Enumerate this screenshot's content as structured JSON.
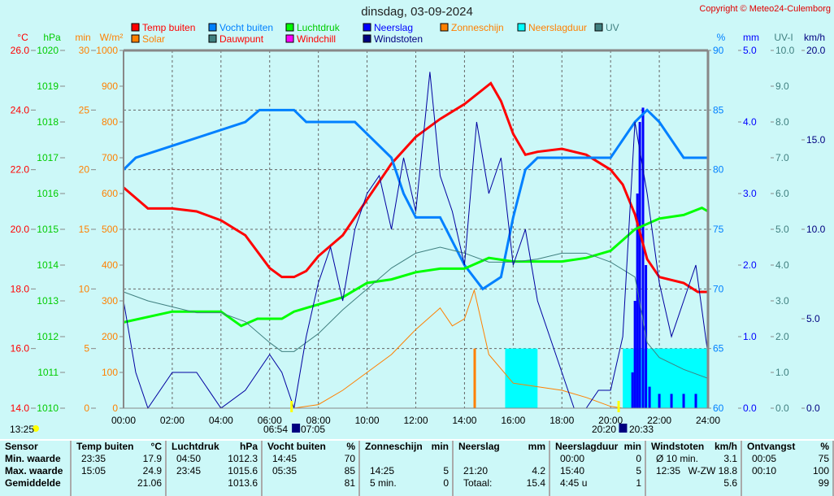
{
  "chart_data": {
    "type": "line",
    "title": "dinsdag, 03-09-2024",
    "copyright": "Copyright © Meteo24-Culemborg",
    "x_ticks": [
      "00:00",
      "02:00",
      "04:00",
      "06:00",
      "08:00",
      "10:00",
      "12:00",
      "14:00",
      "16:00",
      "18:00",
      "20:00",
      "22:00",
      "24:00"
    ],
    "xlim": [
      0,
      24
    ],
    "axes": {
      "temp": {
        "unit": "°C",
        "range": [
          14,
          26
        ],
        "ticks": [
          "14.0",
          "16.0",
          "18.0",
          "20.0",
          "22.0",
          "24.0",
          "26.0"
        ],
        "color": "#ff0000"
      },
      "pressure": {
        "unit": "hPa",
        "range": [
          1010,
          1020
        ],
        "ticks": [
          "1010",
          "1011",
          "1012",
          "1013",
          "1014",
          "1015",
          "1016",
          "1017",
          "1018",
          "1019",
          "1020"
        ],
        "color": "#00cc00"
      },
      "minutes": {
        "unit": "min",
        "range": [
          0,
          30
        ],
        "ticks": [
          "0",
          "5",
          "10",
          "15",
          "20",
          "25",
          "30"
        ],
        "color": "#ff8000"
      },
      "solar": {
        "unit": "W/m²",
        "range": [
          0,
          1000
        ],
        "ticks": [
          "0",
          "100",
          "200",
          "300",
          "400",
          "500",
          "600",
          "700",
          "800",
          "900",
          "1000"
        ],
        "color": "#ff8000"
      },
      "humidity": {
        "unit": "%",
        "range": [
          60,
          90
        ],
        "ticks": [
          "60",
          "65",
          "70",
          "75",
          "80",
          "85",
          "90"
        ],
        "color": "#0080ff"
      },
      "rain": {
        "unit": "mm",
        "range": [
          0,
          5
        ],
        "ticks": [
          "0.0",
          "1.0",
          "2.0",
          "3.0",
          "4.0",
          "5.0"
        ],
        "color": "#0000ff"
      },
      "uv": {
        "unit": "UV-I",
        "range": [
          0,
          10
        ],
        "ticks": [
          "0.0",
          "1.0",
          "2.0",
          "3.0",
          "4.0",
          "5.0",
          "6.0",
          "7.0",
          "8.0",
          "9.0",
          "10.0"
        ],
        "color": "#408080"
      },
      "wind": {
        "unit": "km/h",
        "range": [
          0,
          20
        ],
        "ticks": [
          "0.0",
          "5.0",
          "10.0",
          "15.0",
          "20.0"
        ],
        "color": "#000080"
      }
    },
    "legend": [
      {
        "name": "Temp buiten",
        "color": "#ff0000",
        "text": "#ff0000"
      },
      {
        "name": "Vocht buiten",
        "color": "#0080ff",
        "text": "#0080ff"
      },
      {
        "name": "Luchtdruk",
        "color": "#00ff00",
        "text": "#00cc00"
      },
      {
        "name": "Neerslag",
        "color": "#0000ff",
        "text": "#0000ff"
      },
      {
        "name": "Zonneschijn",
        "color": "#ff8000",
        "text": "#ff8000"
      },
      {
        "name": "Neerslagduur",
        "color": "#00ffff",
        "text": "#ff8000"
      },
      {
        "name": "UV",
        "color": "#408080",
        "text": "#408080"
      },
      {
        "name": "Solar",
        "color": "#ff8000",
        "text": "#ff8000"
      },
      {
        "name": "Dauwpunt",
        "color": "#408080",
        "text": "#ff0000"
      },
      {
        "name": "Windchill",
        "color": "#ff00ff",
        "text": "#ff0000"
      },
      {
        "name": "Windstoten",
        "color": "#000080",
        "text": "#000080"
      }
    ],
    "series": [
      {
        "name": "Temp buiten",
        "axis": "temp",
        "color": "#ff0000",
        "width": 3,
        "points": [
          [
            0,
            21.4
          ],
          [
            1,
            20.7
          ],
          [
            2,
            20.7
          ],
          [
            3,
            20.6
          ],
          [
            4,
            20.3
          ],
          [
            5,
            19.8
          ],
          [
            6,
            18.7
          ],
          [
            6.5,
            18.4
          ],
          [
            7,
            18.4
          ],
          [
            7.5,
            18.6
          ],
          [
            8,
            19.1
          ],
          [
            9,
            19.8
          ],
          [
            10,
            21.0
          ],
          [
            11,
            22.2
          ],
          [
            12,
            23.1
          ],
          [
            13,
            23.7
          ],
          [
            14,
            24.2
          ],
          [
            15.08,
            24.9
          ],
          [
            15.5,
            24.3
          ],
          [
            16,
            23.2
          ],
          [
            16.5,
            22.5
          ],
          [
            17,
            22.6
          ],
          [
            18,
            22.7
          ],
          [
            19,
            22.5
          ],
          [
            20,
            22.0
          ],
          [
            20.5,
            21.5
          ],
          [
            21,
            20.5
          ],
          [
            21.5,
            19.0
          ],
          [
            22,
            18.4
          ],
          [
            23,
            18.2
          ],
          [
            23.58,
            17.9
          ],
          [
            24,
            17.9
          ]
        ]
      },
      {
        "name": "Vocht buiten",
        "axis": "humidity",
        "color": "#0080ff",
        "width": 3,
        "points": [
          [
            0,
            80
          ],
          [
            0.5,
            81
          ],
          [
            2,
            82
          ],
          [
            3.5,
            83
          ],
          [
            5,
            84
          ],
          [
            5.58,
            85
          ],
          [
            7,
            85
          ],
          [
            7.5,
            84
          ],
          [
            9.5,
            84
          ],
          [
            10,
            83
          ],
          [
            11,
            81
          ],
          [
            11.5,
            78
          ],
          [
            12,
            76
          ],
          [
            13,
            76
          ],
          [
            13.5,
            74
          ],
          [
            14,
            72
          ],
          [
            14.75,
            70
          ],
          [
            15.5,
            71
          ],
          [
            16,
            76
          ],
          [
            16.5,
            80
          ],
          [
            17,
            81
          ],
          [
            18,
            81
          ],
          [
            20,
            81
          ],
          [
            20.5,
            82.5
          ],
          [
            21,
            84
          ],
          [
            21.5,
            85
          ],
          [
            22,
            84
          ],
          [
            23,
            81
          ],
          [
            24,
            81
          ]
        ]
      },
      {
        "name": "Luchtdruk",
        "axis": "pressure",
        "color": "#00ff00",
        "width": 3,
        "points": [
          [
            0,
            1012.4
          ],
          [
            2,
            1012.7
          ],
          [
            4,
            1012.7
          ],
          [
            4.83,
            1012.3
          ],
          [
            5.5,
            1012.5
          ],
          [
            6.5,
            1012.5
          ],
          [
            7,
            1012.7
          ],
          [
            8,
            1012.9
          ],
          [
            9,
            1013.1
          ],
          [
            10,
            1013.5
          ],
          [
            11,
            1013.6
          ],
          [
            12,
            1013.8
          ],
          [
            13,
            1013.9
          ],
          [
            14,
            1013.9
          ],
          [
            15,
            1014.2
          ],
          [
            16,
            1014.1
          ],
          [
            18,
            1014.1
          ],
          [
            19,
            1014.2
          ],
          [
            20,
            1014.4
          ],
          [
            20.5,
            1014.7
          ],
          [
            21,
            1015.0
          ],
          [
            22,
            1015.3
          ],
          [
            23,
            1015.4
          ],
          [
            23.75,
            1015.6
          ],
          [
            24,
            1015.5
          ]
        ]
      },
      {
        "name": "Dauwpunt",
        "axis": "temp",
        "color": "#408080",
        "width": 1,
        "points": [
          [
            0,
            17.9
          ],
          [
            1,
            17.6
          ],
          [
            2,
            17.4
          ],
          [
            3,
            17.2
          ],
          [
            4,
            17.2
          ],
          [
            5,
            16.9
          ],
          [
            6,
            16.2
          ],
          [
            6.5,
            15.9
          ],
          [
            7,
            15.9
          ],
          [
            8,
            16.5
          ],
          [
            9,
            17.3
          ],
          [
            10,
            18.0
          ],
          [
            11,
            18.7
          ],
          [
            12,
            19.2
          ],
          [
            13,
            19.4
          ],
          [
            14,
            19.2
          ],
          [
            15,
            18.9
          ],
          [
            16,
            18.9
          ],
          [
            17,
            19.0
          ],
          [
            18,
            19.2
          ],
          [
            19,
            19.2
          ],
          [
            20,
            18.9
          ],
          [
            21,
            18.4
          ],
          [
            21.5,
            16.2
          ],
          [
            22,
            15.7
          ],
          [
            23,
            15.3
          ],
          [
            24,
            15.0
          ]
        ]
      },
      {
        "name": "Solar",
        "axis": "solar",
        "color": "#ff8000",
        "width": 1,
        "points": [
          [
            0,
            0
          ],
          [
            7,
            0
          ],
          [
            7.5,
            5
          ],
          [
            8,
            10
          ],
          [
            9,
            50
          ],
          [
            10,
            100
          ],
          [
            11,
            150
          ],
          [
            12,
            220
          ],
          [
            13,
            280
          ],
          [
            13.5,
            230
          ],
          [
            14,
            250
          ],
          [
            14.4,
            330
          ],
          [
            15,
            150
          ],
          [
            16,
            70
          ],
          [
            17,
            60
          ],
          [
            18,
            50
          ],
          [
            19,
            30
          ],
          [
            20,
            5
          ],
          [
            20.5,
            0
          ],
          [
            24,
            0
          ]
        ]
      },
      {
        "name": "UV",
        "axis": "uv",
        "color": "#408080",
        "width": 1,
        "points": [
          [
            0,
            0
          ],
          [
            24,
            0
          ]
        ]
      },
      {
        "name": "Windstoten",
        "axis": "wind",
        "color": "#0000a0",
        "width": 1,
        "points": [
          [
            0,
            6
          ],
          [
            0.5,
            2
          ],
          [
            1,
            0
          ],
          [
            2,
            2
          ],
          [
            3,
            2
          ],
          [
            4,
            0
          ],
          [
            5,
            1
          ],
          [
            6,
            3
          ],
          [
            6.5,
            2
          ],
          [
            7,
            0
          ],
          [
            7.5,
            4
          ],
          [
            8,
            7
          ],
          [
            8.5,
            9
          ],
          [
            9,
            6
          ],
          [
            9.5,
            10
          ],
          [
            10,
            12
          ],
          [
            10.5,
            13
          ],
          [
            11,
            10
          ],
          [
            11.5,
            14
          ],
          [
            12,
            11
          ],
          [
            12.58,
            18.8
          ],
          [
            13,
            13
          ],
          [
            13.5,
            11
          ],
          [
            14,
            8
          ],
          [
            14.5,
            16
          ],
          [
            15,
            12
          ],
          [
            15.5,
            14
          ],
          [
            16,
            8
          ],
          [
            16.5,
            10
          ],
          [
            17,
            6
          ],
          [
            17.5,
            4
          ],
          [
            18,
            2
          ],
          [
            18.5,
            0
          ],
          [
            19,
            0
          ],
          [
            19.5,
            1
          ],
          [
            20,
            1
          ],
          [
            20.5,
            4
          ],
          [
            21,
            16
          ],
          [
            21.5,
            12
          ],
          [
            22,
            7
          ],
          [
            22.5,
            4
          ],
          [
            23,
            6
          ],
          [
            23.5,
            8
          ],
          [
            24,
            3
          ]
        ]
      }
    ],
    "bars": [
      {
        "name": "Zonneschijn",
        "axis": "minutes",
        "color": "#ff8000",
        "points": [
          [
            14.42,
            5
          ]
        ]
      },
      {
        "name": "Neerslagduur",
        "axis": "minutes",
        "color": "#00ffff",
        "spans": [
          [
            15.67,
            17.0,
            5
          ],
          [
            20.5,
            24,
            5
          ]
        ]
      },
      {
        "name": "Neerslag",
        "axis": "rain",
        "color": "#0000ff",
        "points": [
          [
            20.9,
            0.5
          ],
          [
            21.0,
            1.5
          ],
          [
            21.1,
            3.0
          ],
          [
            21.2,
            4.0
          ],
          [
            21.33,
            4.2
          ],
          [
            21.45,
            2.0
          ],
          [
            21.6,
            0.3
          ],
          [
            22,
            0.2
          ],
          [
            22.5,
            0.2
          ],
          [
            23,
            0.2
          ],
          [
            23.5,
            0.2
          ]
        ]
      }
    ],
    "sun": {
      "daylength": "13:25",
      "sunrise": "06:54",
      "sunrise_civil": "07:05",
      "sunset": "20:20",
      "sunset_civil": "20:33"
    }
  },
  "table": {
    "columns": [
      {
        "head": [
          "Sensor",
          ""
        ],
        "rows": [
          [
            "Min. waarde",
            ""
          ],
          [
            "Max. waarde",
            ""
          ],
          [
            "Gemiddelde",
            ""
          ]
        ]
      },
      {
        "head": [
          "Temp buiten",
          "°C"
        ],
        "rows": [
          [
            "23:35",
            "17.9"
          ],
          [
            "15:05",
            "24.9"
          ],
          [
            "",
            "21.06"
          ]
        ]
      },
      {
        "head": [
          "Luchtdruk",
          "hPa"
        ],
        "rows": [
          [
            "04:50",
            "1012.3"
          ],
          [
            "23:45",
            "1015.6"
          ],
          [
            "",
            "1013.6"
          ]
        ]
      },
      {
        "head": [
          "Vocht buiten",
          "%"
        ],
        "rows": [
          [
            "14:45",
            "70"
          ],
          [
            "05:35",
            "85"
          ],
          [
            "",
            "81"
          ]
        ]
      },
      {
        "head": [
          "Zonneschijn",
          "min"
        ],
        "rows": [
          [
            "",
            ""
          ],
          [
            "14:25",
            "5"
          ],
          [
            "5 min.",
            "0"
          ]
        ]
      },
      {
        "head": [
          "Neerslag",
          "mm"
        ],
        "rows": [
          [
            "",
            ""
          ],
          [
            "21:20",
            "4.2"
          ],
          [
            "Totaal:",
            "15.4"
          ]
        ]
      },
      {
        "head": [
          "Neerslagduur",
          "min"
        ],
        "rows": [
          [
            "00:00",
            "0"
          ],
          [
            "15:40",
            "5"
          ],
          [
            "4:45 u",
            "1"
          ]
        ]
      },
      {
        "head": [
          "Windstoten",
          "km/h"
        ],
        "rows": [
          [
            "Ø 10 min.",
            "3.1"
          ],
          [
            "12:35",
            "W-ZW 18.8"
          ],
          [
            "",
            "5.6"
          ]
        ]
      },
      {
        "head": [
          "Ontvangst",
          "%"
        ],
        "rows": [
          [
            "00:05",
            "75"
          ],
          [
            "00:10",
            "100"
          ],
          [
            "",
            "99"
          ]
        ]
      }
    ]
  }
}
